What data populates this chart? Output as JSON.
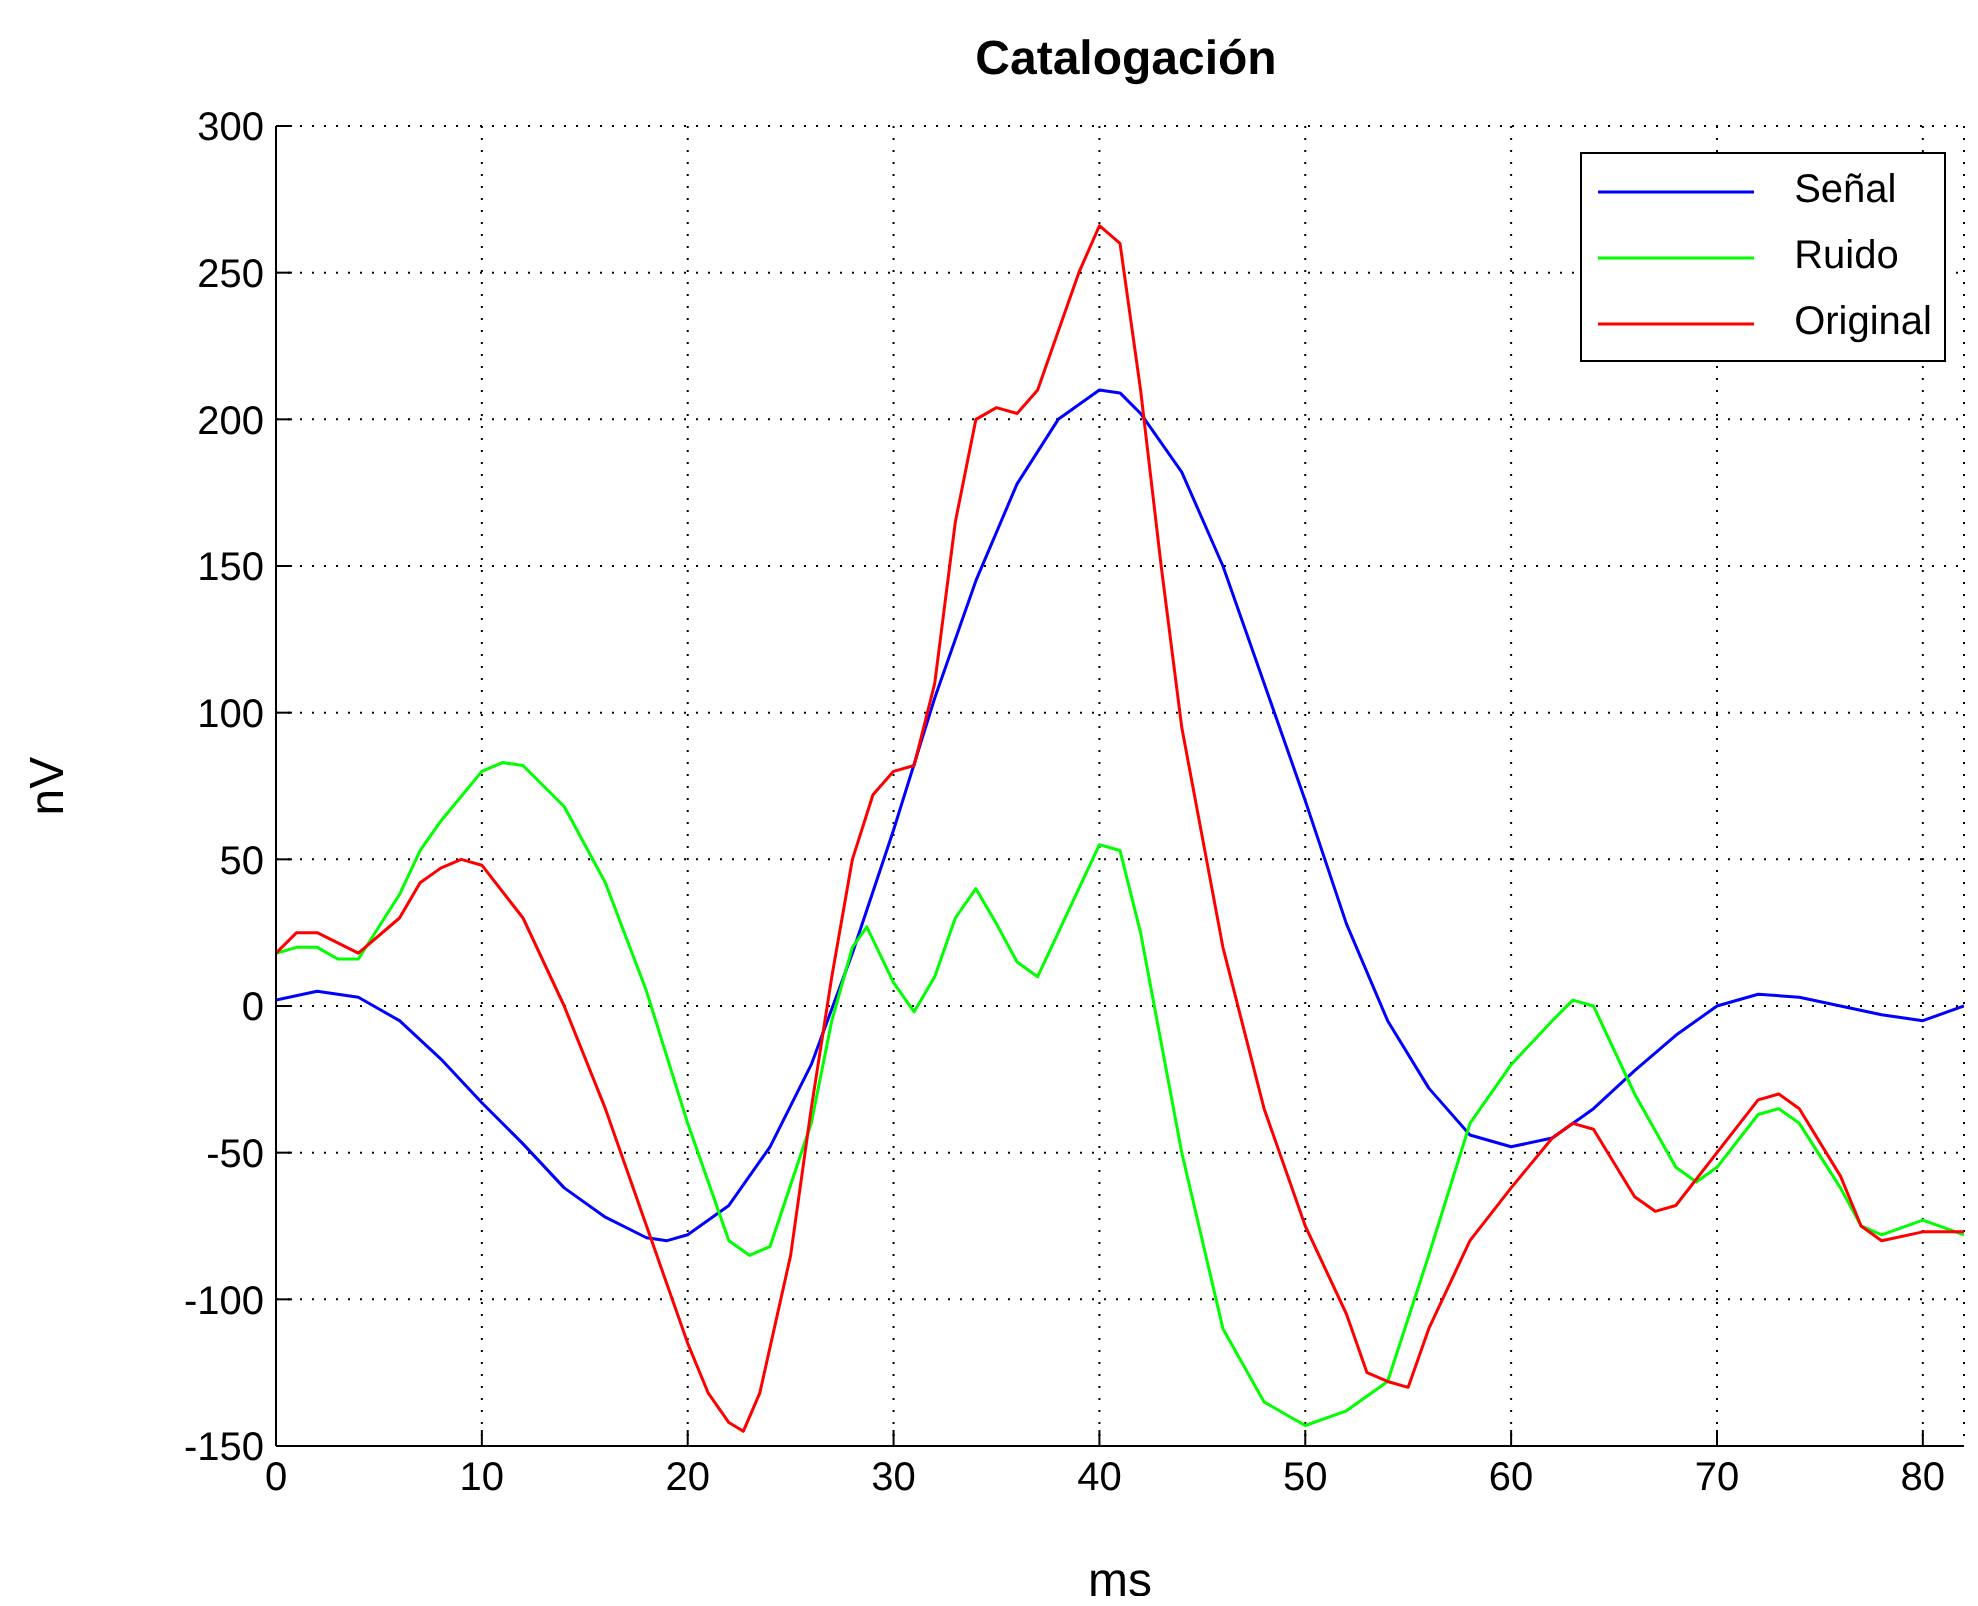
{
  "chart_data": {
    "type": "line",
    "title": "Catalogación",
    "xlabel": "ms",
    "ylabel": "nV",
    "xlim": [
      0,
      82
    ],
    "xticks": [
      0,
      10,
      20,
      30,
      40,
      50,
      60,
      70,
      80
    ],
    "ylim": [
      -150,
      300
    ],
    "yticks": [
      -150,
      -100,
      -50,
      0,
      50,
      100,
      150,
      200,
      250,
      300
    ],
    "grid": true,
    "legend": "top right",
    "line_style": "solid",
    "marker": "none",
    "series": [
      {
        "name": "Señal",
        "color": "#0000ff",
        "x": [
          0,
          2,
          4,
          6,
          8,
          10,
          12,
          14,
          16,
          18,
          19,
          20,
          22,
          24,
          26,
          28,
          30,
          32,
          34,
          36,
          38,
          40,
          41,
          42,
          44,
          46,
          48,
          50,
          52,
          54,
          56,
          58,
          60,
          62,
          64,
          66,
          68,
          70,
          72,
          74,
          76,
          78,
          80,
          82
        ],
        "values": [
          2,
          5,
          3,
          -5,
          -18,
          -33,
          -47,
          -62,
          -72,
          -79,
          -80,
          -78,
          -68,
          -48,
          -20,
          18,
          60,
          105,
          145,
          178,
          200,
          210,
          209,
          202,
          182,
          150,
          110,
          70,
          28,
          -5,
          -28,
          -44,
          -48,
          -45,
          -35,
          -22,
          -10,
          0,
          4,
          3,
          0,
          -3,
          -5,
          0
        ]
      },
      {
        "name": "Ruido",
        "color": "#00ff00",
        "x": [
          0,
          1,
          2,
          3,
          4,
          6,
          7,
          8,
          10,
          11,
          12,
          14,
          16,
          18,
          20,
          22,
          23,
          24,
          26,
          27,
          28,
          28.7,
          30,
          31,
          32,
          33,
          34,
          35,
          36,
          37,
          38,
          40,
          41,
          42,
          44,
          46,
          48,
          50,
          52,
          54,
          56,
          58,
          60,
          62,
          63,
          64,
          66,
          68,
          69,
          70,
          72,
          73,
          74,
          76,
          77,
          78,
          80,
          82
        ],
        "values": [
          18,
          20,
          20,
          16,
          16,
          38,
          53,
          63,
          80,
          83,
          82,
          68,
          42,
          5,
          -40,
          -80,
          -85,
          -82,
          -40,
          -5,
          20,
          27,
          8,
          -2,
          10,
          30,
          40,
          28,
          15,
          10,
          25,
          55,
          53,
          25,
          -50,
          -110,
          -135,
          -143,
          -138,
          -128,
          -85,
          -40,
          -20,
          -5,
          2,
          0,
          -30,
          -55,
          -60,
          -55,
          -37,
          -35,
          -40,
          -62,
          -75,
          -78,
          -73,
          -78
        ]
      },
      {
        "name": "Original",
        "color": "#ff0000",
        "x": [
          0,
          1,
          2,
          4,
          6,
          7,
          8,
          9,
          10,
          12,
          14,
          16,
          18,
          20,
          21,
          22,
          22.7,
          23.5,
          25,
          26,
          27,
          28,
          29,
          30,
          31,
          32,
          33,
          34,
          35,
          36,
          37,
          38,
          39,
          40,
          41,
          42,
          43,
          44,
          46,
          48,
          50,
          52,
          53,
          54,
          55,
          56,
          58,
          60,
          62,
          63,
          64,
          66,
          67,
          68,
          70,
          72,
          73,
          74,
          76,
          77,
          78,
          80,
          82
        ],
        "values": [
          18,
          25,
          25,
          18,
          30,
          42,
          47,
          50,
          48,
          30,
          0,
          -35,
          -75,
          -115,
          -132,
          -142,
          -145,
          -132,
          -85,
          -35,
          10,
          50,
          72,
          80,
          82,
          110,
          165,
          200,
          204,
          202,
          210,
          230,
          250,
          266,
          260,
          210,
          150,
          95,
          20,
          -35,
          -75,
          -105,
          -125,
          -128,
          -130,
          -110,
          -80,
          -62,
          -45,
          -40,
          -42,
          -65,
          -70,
          -68,
          -50,
          -32,
          -30,
          -35,
          -58,
          -75,
          -80,
          -77,
          -77
        ]
      }
    ]
  }
}
